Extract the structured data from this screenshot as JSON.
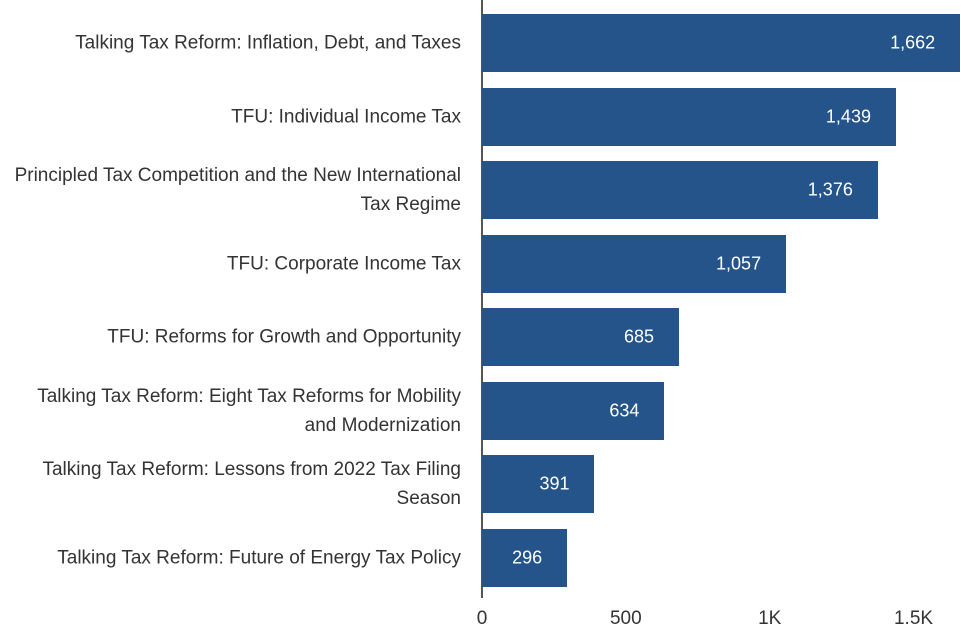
{
  "chart_data": {
    "type": "bar",
    "orientation": "horizontal",
    "categories": [
      "Talking Tax Reform: Inflation, Debt, and Taxes",
      "TFU: Individual Income Tax",
      "Principled Tax Competition and the New International Tax Regime",
      "TFU: Corporate Income Tax",
      "TFU: Reforms for Growth and Opportunity",
      "Talking Tax Reform: Eight Tax Reforms for Mobility and Modernization",
      "Talking Tax Reform: Lessons from 2022 Tax Filing Season",
      "Talking Tax Reform: Future of Energy Tax Policy"
    ],
    "values": [
      1662,
      1439,
      1376,
      1057,
      685,
      634,
      391,
      296
    ],
    "value_labels": [
      "1,662",
      "1,439",
      "1,376",
      "1,057",
      "685",
      "634",
      "391",
      "296"
    ],
    "color": "#24548a",
    "xlim": [
      0,
      1665
    ],
    "xticks": [
      0,
      500,
      {
        "value": 1000,
        "label": "1K"
      },
      {
        "value": 1500,
        "label": "1.5K"
      }
    ],
    "grid": false
  }
}
